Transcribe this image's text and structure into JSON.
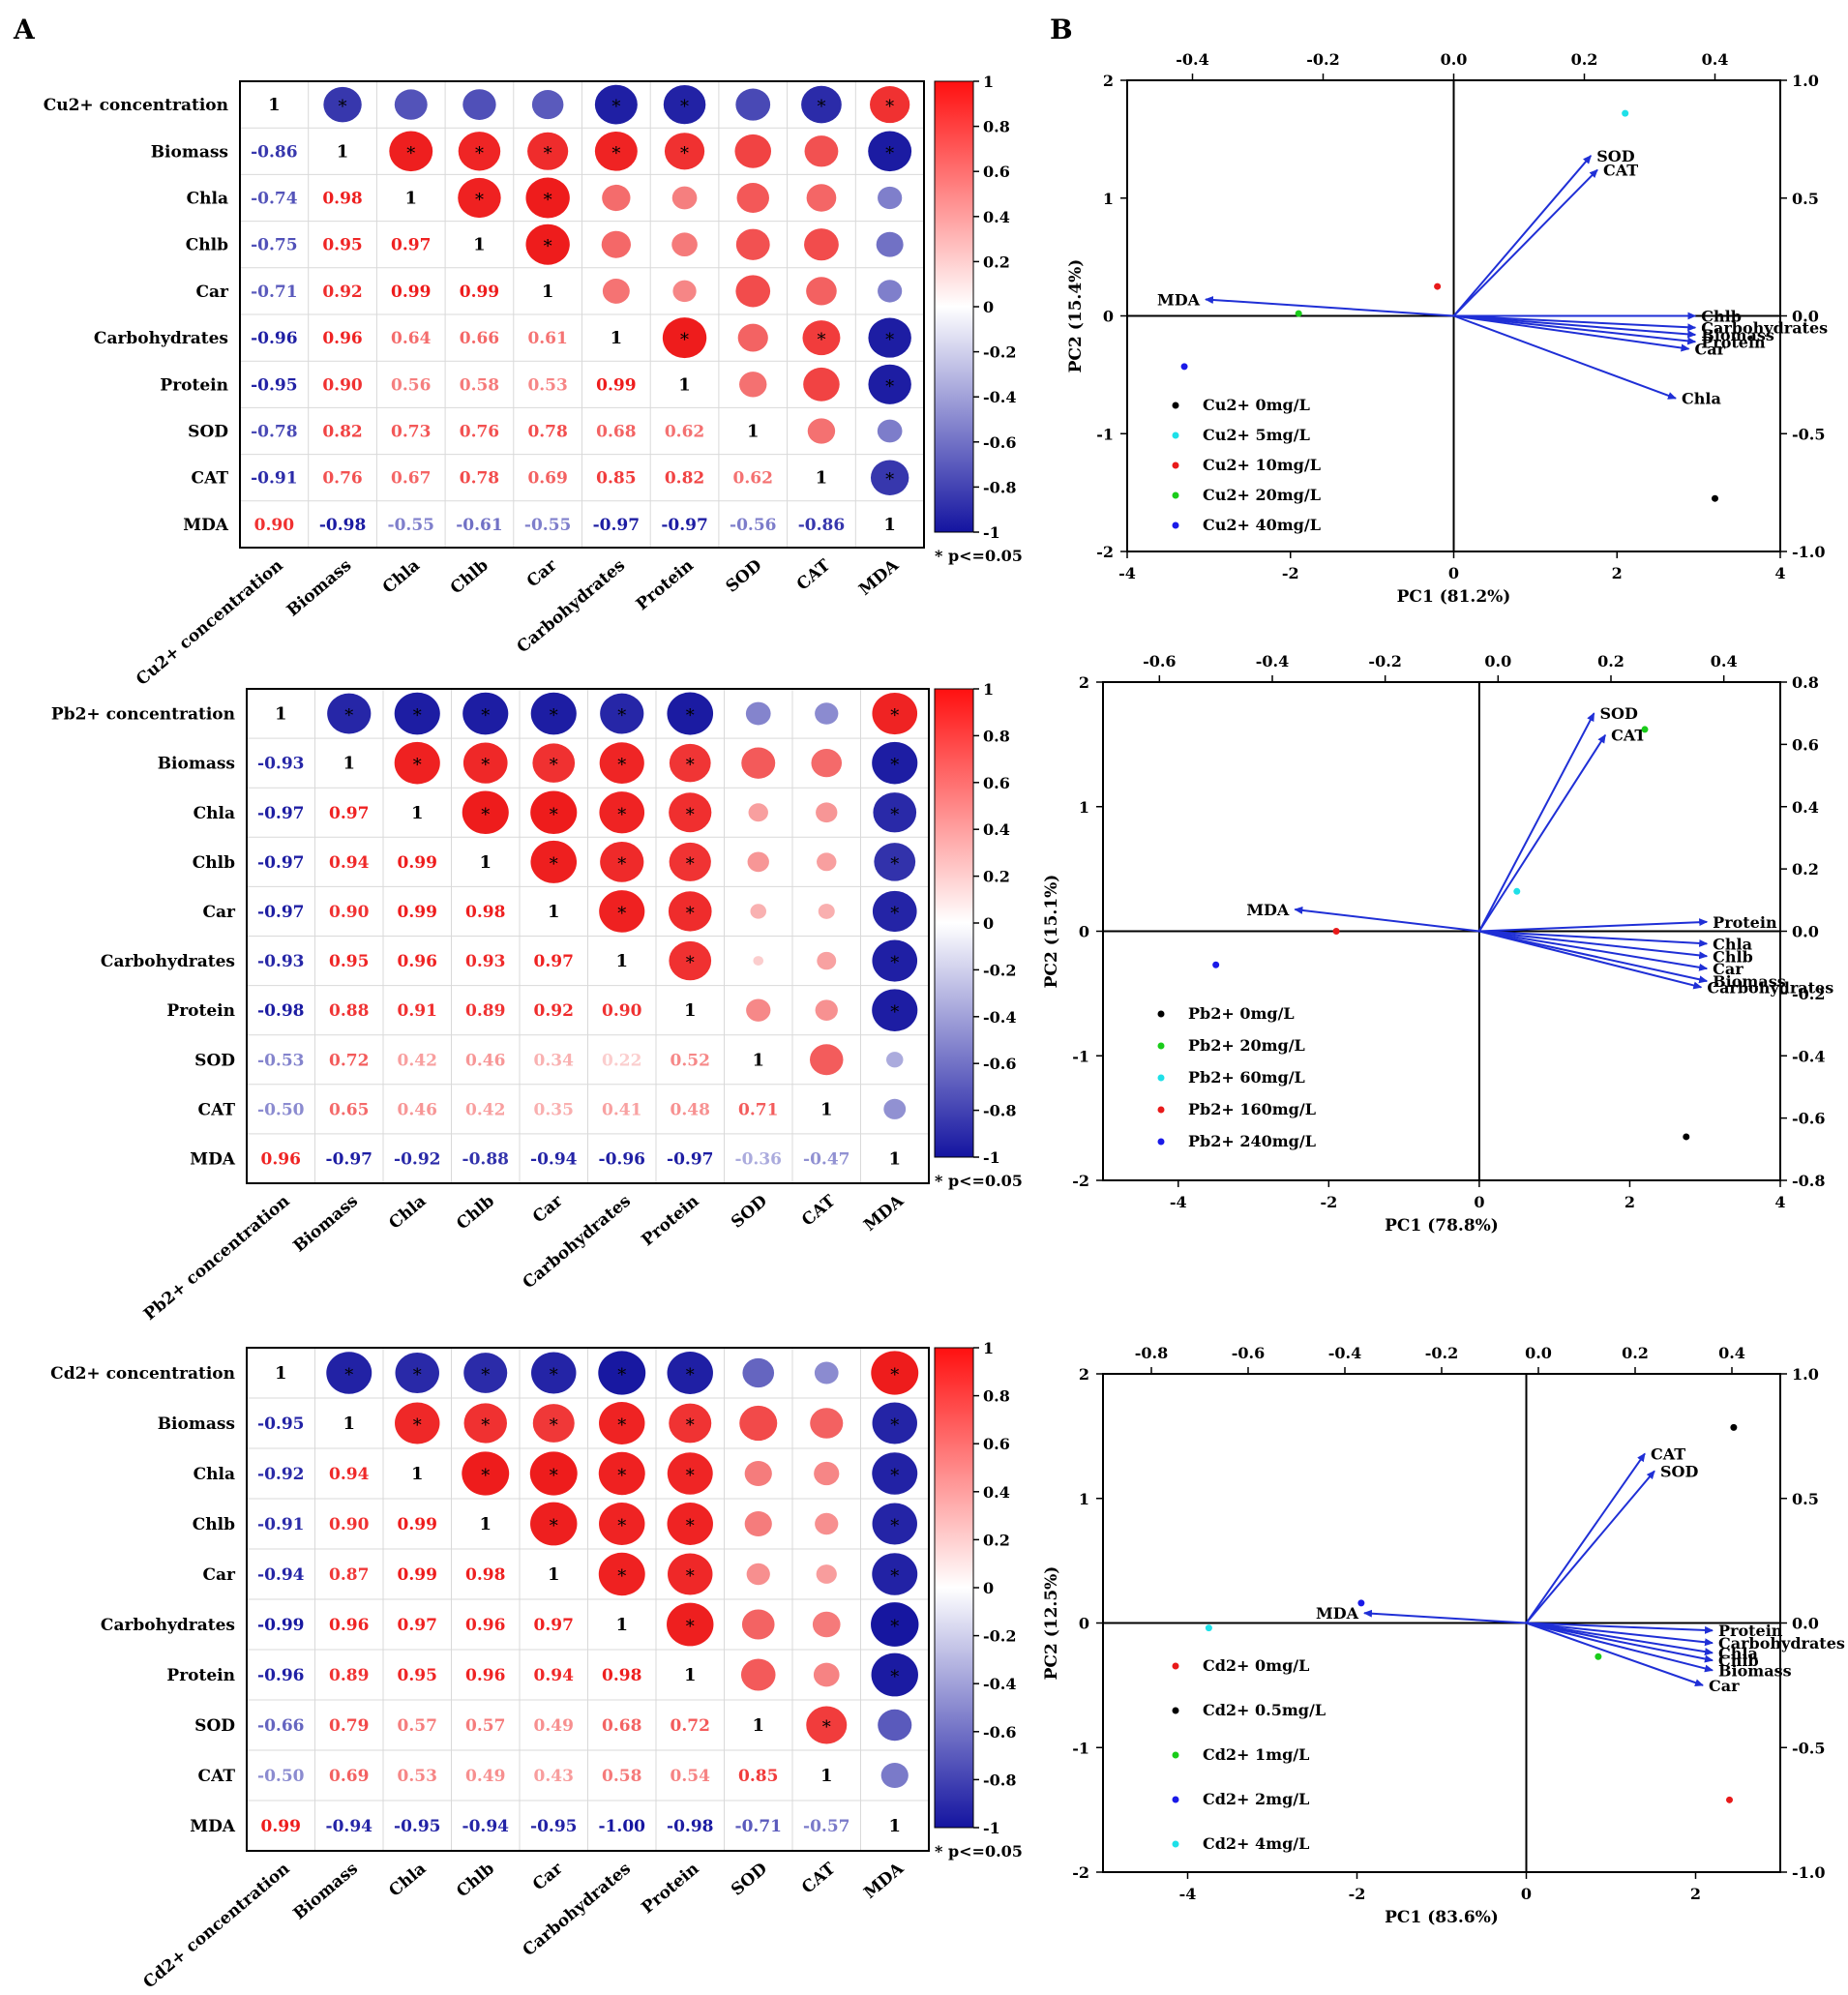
{
  "panel_labels": [
    "A",
    "B"
  ],
  "colors": {
    "positive": "#ee1c1c",
    "negative": "#1a1aa0",
    "arrow": "#1f2fd6",
    "axis": "#000000"
  },
  "chart_data": [
    {
      "type": "heatmap",
      "subtype": "correlation-matrix",
      "title": "",
      "variables": [
        "Cu2+ concentration",
        "Biomass",
        "Chla",
        "Chlb",
        "Car",
        "Carbohydrates",
        "Protein",
        "SOD",
        "CAT",
        "MDA"
      ],
      "matrix": [
        [
          1,
          -0.86,
          -0.74,
          -0.75,
          -0.71,
          -0.96,
          -0.95,
          -0.78,
          -0.91,
          0.9
        ],
        [
          -0.86,
          1,
          0.98,
          0.95,
          0.92,
          0.96,
          0.9,
          0.82,
          0.76,
          -0.98
        ],
        [
          -0.74,
          0.98,
          1,
          0.97,
          0.99,
          0.64,
          0.56,
          0.73,
          0.67,
          -0.55
        ],
        [
          -0.75,
          0.95,
          0.97,
          1,
          0.99,
          0.66,
          0.58,
          0.76,
          0.78,
          -0.61
        ],
        [
          -0.71,
          0.92,
          0.99,
          0.99,
          1,
          0.61,
          0.53,
          0.78,
          0.69,
          -0.55
        ],
        [
          -0.96,
          0.96,
          0.64,
          0.66,
          0.61,
          1,
          0.99,
          0.68,
          0.85,
          -0.97
        ],
        [
          -0.95,
          0.9,
          0.56,
          0.58,
          0.53,
          0.99,
          1,
          0.62,
          0.82,
          -0.97
        ],
        [
          -0.78,
          0.82,
          0.73,
          0.76,
          0.78,
          0.68,
          0.62,
          1,
          0.62,
          -0.56
        ],
        [
          -0.91,
          0.76,
          0.67,
          0.78,
          0.69,
          0.85,
          0.82,
          0.62,
          1,
          -0.86
        ],
        [
          0.9,
          -0.98,
          -0.55,
          -0.61,
          -0.55,
          -0.97,
          -0.97,
          -0.56,
          -0.86,
          1
        ]
      ],
      "colorbar_ticks": [
        "1",
        "0.8",
        "0.6",
        "0.4",
        "0.2",
        "0",
        "-0.2",
        "-0.4",
        "-0.6",
        "-0.8",
        "-1"
      ],
      "significance_note": "* p<=0.05"
    },
    {
      "type": "heatmap",
      "subtype": "correlation-matrix",
      "title": "",
      "variables": [
        "Pb2+ concentration",
        "Biomass",
        "Chla",
        "Chlb",
        "Car",
        "Carbohydrates",
        "Protein",
        "SOD",
        "CAT",
        "MDA"
      ],
      "matrix": [
        [
          1,
          -0.93,
          -0.97,
          -0.97,
          -0.97,
          -0.93,
          -0.98,
          -0.53,
          -0.5,
          0.96
        ],
        [
          -0.93,
          1,
          0.97,
          0.94,
          0.9,
          0.95,
          0.88,
          0.72,
          0.65,
          -0.97
        ],
        [
          -0.97,
          0.97,
          1,
          0.99,
          0.99,
          0.96,
          0.91,
          0.42,
          0.46,
          -0.92
        ],
        [
          -0.97,
          0.94,
          0.99,
          1,
          0.98,
          0.93,
          0.89,
          0.46,
          0.42,
          -0.88
        ],
        [
          -0.97,
          0.9,
          0.99,
          0.98,
          1,
          0.97,
          0.92,
          0.34,
          0.35,
          -0.94
        ],
        [
          -0.93,
          0.95,
          0.96,
          0.93,
          0.97,
          1,
          0.9,
          0.22,
          0.41,
          -0.96
        ],
        [
          -0.98,
          0.88,
          0.91,
          0.89,
          0.92,
          0.9,
          1,
          0.52,
          0.48,
          -0.97
        ],
        [
          -0.53,
          0.72,
          0.42,
          0.46,
          0.34,
          0.22,
          0.52,
          1,
          0.71,
          -0.36
        ],
        [
          -0.5,
          0.65,
          0.46,
          0.42,
          0.35,
          0.41,
          0.48,
          0.71,
          1,
          -0.47
        ],
        [
          0.96,
          -0.97,
          -0.92,
          -0.88,
          -0.94,
          -0.96,
          -0.97,
          -0.36,
          -0.47,
          1
        ]
      ],
      "colorbar_ticks": [
        "1",
        "0.8",
        "0.6",
        "0.4",
        "0.2",
        "0",
        "-0.2",
        "-0.4",
        "-0.6",
        "-0.8",
        "-1"
      ],
      "significance_note": "* p<=0.05"
    },
    {
      "type": "heatmap",
      "subtype": "correlation-matrix",
      "title": "",
      "variables": [
        "Cd2+ concentration",
        "Biomass",
        "Chla",
        "Chlb",
        "Car",
        "Carbohydrates",
        "Protein",
        "SOD",
        "CAT",
        "MDA"
      ],
      "matrix": [
        [
          1,
          -0.95,
          -0.92,
          -0.91,
          -0.94,
          -0.99,
          -0.96,
          -0.66,
          -0.5,
          0.99
        ],
        [
          -0.95,
          1,
          0.94,
          0.9,
          0.87,
          0.96,
          0.89,
          0.79,
          0.69,
          -0.94
        ],
        [
          -0.92,
          0.94,
          1,
          0.99,
          0.99,
          0.97,
          0.95,
          0.57,
          0.53,
          -0.95
        ],
        [
          -0.91,
          0.9,
          0.99,
          1,
          0.98,
          0.96,
          0.96,
          0.57,
          0.49,
          -0.94
        ],
        [
          -0.94,
          0.87,
          0.99,
          0.98,
          1,
          0.97,
          0.94,
          0.49,
          0.43,
          -0.95
        ],
        [
          -0.99,
          0.96,
          0.97,
          0.96,
          0.97,
          1,
          0.98,
          0.68,
          0.58,
          -1.0
        ],
        [
          -0.96,
          0.89,
          0.95,
          0.96,
          0.94,
          0.98,
          1,
          0.72,
          0.54,
          -0.98
        ],
        [
          -0.66,
          0.79,
          0.57,
          0.57,
          0.49,
          0.68,
          0.72,
          1,
          0.85,
          -0.71
        ],
        [
          -0.5,
          0.69,
          0.53,
          0.49,
          0.43,
          0.58,
          0.54,
          0.85,
          1,
          -0.57
        ],
        [
          0.99,
          -0.94,
          -0.95,
          -0.94,
          -0.95,
          -1.0,
          -0.98,
          -0.71,
          -0.57,
          1
        ]
      ],
      "colorbar_ticks": [
        "1",
        "0.8",
        "0.6",
        "0.4",
        "0.2",
        "0",
        "-0.2",
        "-0.4",
        "-0.6",
        "-0.8",
        "-1"
      ],
      "significance_note": "* p<=0.05"
    },
    {
      "type": "scatter",
      "subtype": "pca-biplot",
      "xlabel": "PC1 (81.2%)",
      "ylabel": "PC2 (15.4%)",
      "xlim": [
        -4,
        4
      ],
      "ylim": [
        -2,
        2
      ],
      "xticks": [
        "-4",
        "-2",
        "0",
        "2",
        "4"
      ],
      "yticks": [
        "2",
        "1",
        "0",
        "-1",
        "-2"
      ],
      "loading_xlim": [
        -0.5,
        0.5
      ],
      "loading_ylim": [
        -1.0,
        1.0
      ],
      "top_ticks": [
        "-0.4",
        "-0.2",
        "0.0",
        "0.2",
        "0.4"
      ],
      "right_ticks": [
        "1.0",
        "0.5",
        "0.0",
        "-0.5",
        "-1.0"
      ],
      "points": [
        {
          "label": "Cu2+  0mg/L",
          "color": "#000000",
          "x": 3.2,
          "y": -1.55
        },
        {
          "label": "Cu2+  5mg/L",
          "color": "#1ee0e8",
          "x": 2.1,
          "y": 1.72
        },
        {
          "label": "Cu2+  10mg/L",
          "color": "#e81a1a",
          "x": -0.2,
          "y": 0.25
        },
        {
          "label": "Cu2+  20mg/L",
          "color": "#1acc1a",
          "x": -1.9,
          "y": 0.02
        },
        {
          "label": "Cu2+  40mg/L",
          "color": "#1a1ae8",
          "x": -3.3,
          "y": -0.43
        }
      ],
      "loadings": [
        {
          "name": "SOD",
          "x": 0.21,
          "y": 0.68
        },
        {
          "name": "CAT",
          "x": 0.22,
          "y": 0.62
        },
        {
          "name": "MDA",
          "x": -0.38,
          "y": 0.07
        },
        {
          "name": "Chlb",
          "x": 0.37,
          "y": 0.0
        },
        {
          "name": "Carbohydrates",
          "x": 0.37,
          "y": -0.05
        },
        {
          "name": "Biomass",
          "x": 0.37,
          "y": -0.08
        },
        {
          "name": "Protein",
          "x": 0.37,
          "y": -0.11
        },
        {
          "name": "Car",
          "x": 0.36,
          "y": -0.14
        },
        {
          "name": "Chla",
          "x": 0.34,
          "y": -0.35
        }
      ]
    },
    {
      "type": "scatter",
      "subtype": "pca-biplot",
      "xlabel": "PC1 (78.8%)",
      "ylabel": "PC2 (15.1%)",
      "xlim": [
        -5,
        4
      ],
      "ylim": [
        -2,
        2
      ],
      "xticks": [
        "-4",
        "-2",
        "0",
        "2",
        "4"
      ],
      "yticks": [
        "2",
        "1",
        "0",
        "-1",
        "-2"
      ],
      "loading_xlim": [
        -0.7,
        0.5
      ],
      "loading_ylim": [
        -0.8,
        0.8
      ],
      "top_ticks": [
        "-0.6",
        "-0.4",
        "-0.2",
        "0.0",
        "0.2",
        "0.4"
      ],
      "right_ticks": [
        "0.8",
        "0.6",
        "0.4",
        "0.2",
        "0.0",
        "-0.2",
        "-0.4",
        "-0.6",
        "-0.8"
      ],
      "points": [
        {
          "label": "Pb2+ 0mg/L",
          "color": "#000000",
          "x": 2.75,
          "y": -1.65
        },
        {
          "label": "Pb2+ 20mg/L",
          "color": "#1acc1a",
          "x": 2.2,
          "y": 1.62
        },
        {
          "label": "Pb2+ 60mg/L",
          "color": "#1ee0e8",
          "x": 0.5,
          "y": 0.32
        },
        {
          "label": "Pb2+ 160mg/L",
          "color": "#e81a1a",
          "x": -1.9,
          "y": 0.0
        },
        {
          "label": "Pb2+ 240mg/L",
          "color": "#1a1ae8",
          "x": -3.5,
          "y": -0.27
        }
      ],
      "loadings": [
        {
          "name": "SOD",
          "x": 0.17,
          "y": 0.7
        },
        {
          "name": "CAT",
          "x": 0.19,
          "y": 0.63
        },
        {
          "name": "MDA",
          "x": -0.36,
          "y": 0.07
        },
        {
          "name": "Protein",
          "x": 0.37,
          "y": 0.03
        },
        {
          "name": "Chla",
          "x": 0.37,
          "y": -0.04
        },
        {
          "name": "Chlb",
          "x": 0.37,
          "y": -0.08
        },
        {
          "name": "Car",
          "x": 0.37,
          "y": -0.12
        },
        {
          "name": "Biomass",
          "x": 0.37,
          "y": -0.16
        },
        {
          "name": "Carbohydrates",
          "x": 0.36,
          "y": -0.18
        }
      ]
    },
    {
      "type": "scatter",
      "subtype": "pca-biplot",
      "xlabel": "PC1 (83.6%)",
      "ylabel": "PC2 (12.5%)",
      "xlim": [
        -5,
        3
      ],
      "ylim": [
        -2,
        2
      ],
      "xticks": [
        "-4",
        "-2",
        "0",
        "2"
      ],
      "yticks": [
        "2",
        "1",
        "0",
        "-1",
        "-2"
      ],
      "loading_xlim": [
        -0.9,
        0.5
      ],
      "loading_ylim": [
        -1.0,
        1.0
      ],
      "top_ticks": [
        "-0.8",
        "-0.6",
        "-0.4",
        "-0.2",
        "0.0",
        "0.2",
        "0.4"
      ],
      "right_ticks": [
        "1.0",
        "0.5",
        "0.0",
        "-0.5",
        "-1.0"
      ],
      "points": [
        {
          "label": "Cd2+   0mg/L",
          "color": "#e81a1a",
          "x": 2.4,
          "y": -1.42
        },
        {
          "label": "Cd2+   0.5mg/L",
          "color": "#000000",
          "x": 2.45,
          "y": 1.57
        },
        {
          "label": "Cd2+   1mg/L",
          "color": "#1acc1a",
          "x": 0.85,
          "y": -0.27
        },
        {
          "label": "Cd2+   2mg/L",
          "color": "#1a1ae8",
          "x": -1.95,
          "y": 0.16
        },
        {
          "label": "Cd2+   4mg/L",
          "color": "#1ee0e8",
          "x": -3.75,
          "y": -0.04
        }
      ],
      "loadings": [
        {
          "name": "CAT",
          "x": 0.22,
          "y": 0.68
        },
        {
          "name": "SOD",
          "x": 0.24,
          "y": 0.61
        },
        {
          "name": "MDA",
          "x": -0.36,
          "y": 0.04
        },
        {
          "name": "Protein",
          "x": 0.36,
          "y": -0.03
        },
        {
          "name": "Carbohydrates",
          "x": 0.36,
          "y": -0.08
        },
        {
          "name": "Chla",
          "x": 0.36,
          "y": -0.12
        },
        {
          "name": "Chlb",
          "x": 0.36,
          "y": -0.15
        },
        {
          "name": "Biomass",
          "x": 0.36,
          "y": -0.19
        },
        {
          "name": "Car",
          "x": 0.34,
          "y": -0.25
        }
      ]
    }
  ]
}
